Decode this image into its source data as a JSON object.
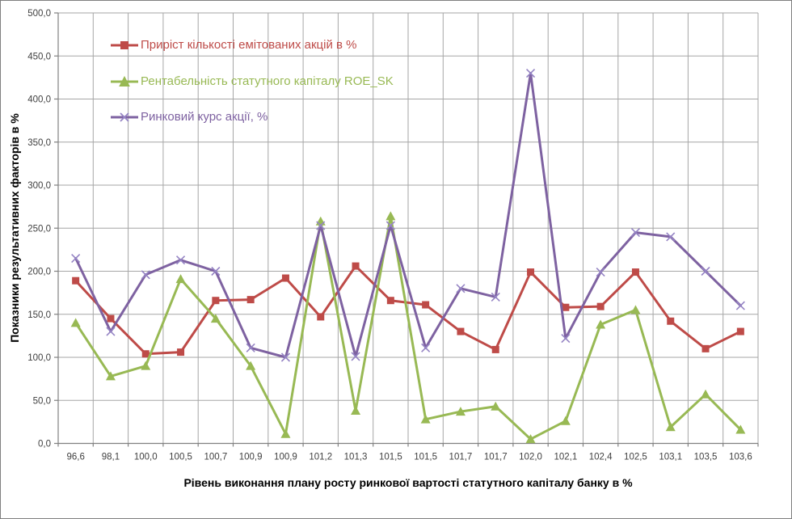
{
  "chart_data": {
    "type": "line",
    "title": "",
    "xlabel": "Рівень виконання плану росту ринкової вартості статутного капіталу банку в %",
    "ylabel": "Показники результативних факторів в %",
    "ylim": [
      0,
      500
    ],
    "ytick_step": 50,
    "ytick_labels": [
      "0,0",
      "50,0",
      "100,0",
      "150,0",
      "200,0",
      "250,0",
      "300,0",
      "350,0",
      "400,0",
      "450,0",
      "500,0"
    ],
    "grid": true,
    "legend_position": "top-left-inside",
    "axis_color": "#808080",
    "gridline_color": "#a6a6a6",
    "tick_label_color": "#404040",
    "categories": [
      "96,6",
      "98,1",
      "100,0",
      "100,5",
      "100,7",
      "100,9",
      "100,9",
      "101,2",
      "101,3",
      "101,5",
      "101,5",
      "101,7",
      "101,7",
      "102,0",
      "102,1",
      "102,4",
      "102,5",
      "103,1",
      "103,5",
      "103,6"
    ],
    "series": [
      {
        "name": "Приріст кількості емітованих акцій  в %",
        "color": "#be4b48",
        "marker": "square",
        "marker_color": "#be4b48",
        "values": [
          189,
          145,
          104,
          106,
          166,
          167,
          192,
          147,
          206,
          166,
          161,
          130,
          109,
          199,
          158,
          159,
          199,
          142,
          110,
          130
        ]
      },
      {
        "name": "Рентабельність статутного капіталу ROE_SK",
        "color": "#98b954",
        "marker": "triangle",
        "marker_color": "#98b954",
        "values": [
          140,
          78,
          90,
          191,
          145,
          90,
          11,
          258,
          38,
          264,
          28,
          37,
          43,
          5,
          26,
          138,
          155,
          19,
          57,
          16
        ]
      },
      {
        "name": "Ринковий курс акції, %",
        "color": "#7e62a1",
        "marker": "x",
        "marker_color": "#9584c4",
        "values": [
          215,
          130,
          196,
          213,
          200,
          111,
          100,
          253,
          101,
          253,
          111,
          180,
          170,
          430,
          122,
          199,
          245,
          240,
          200,
          160
        ]
      }
    ]
  }
}
